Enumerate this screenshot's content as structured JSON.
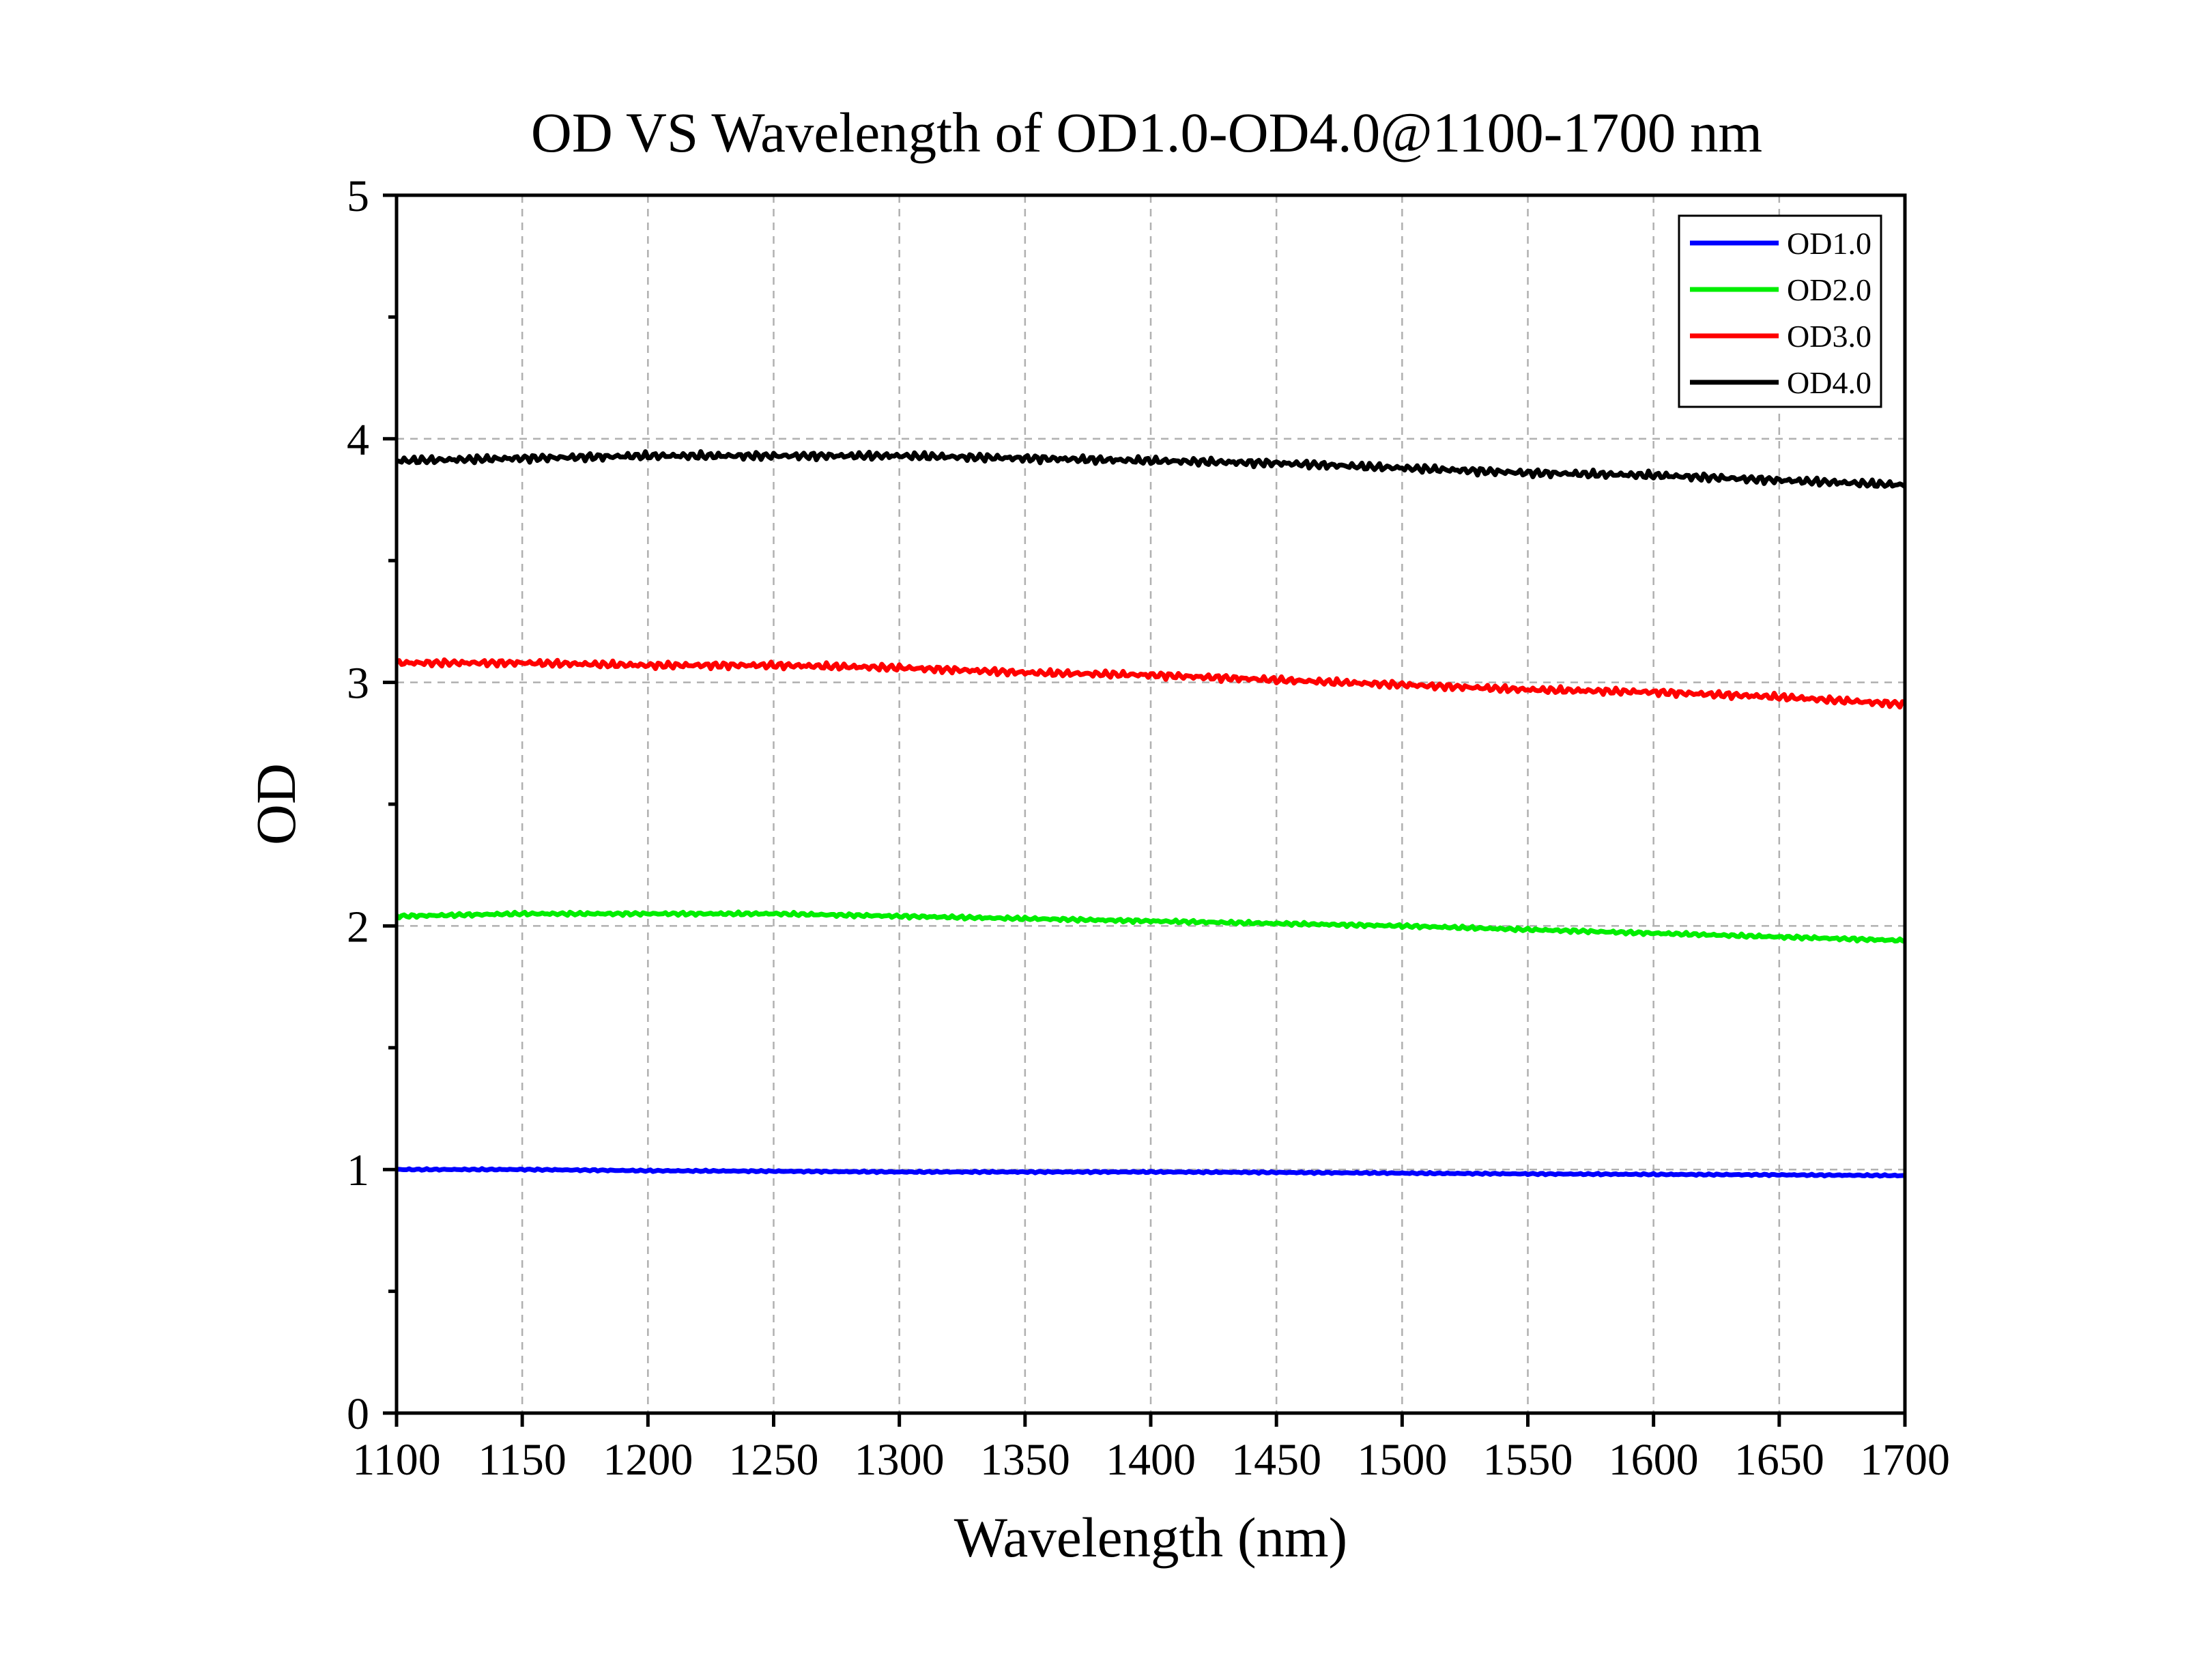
{
  "chart_data": {
    "type": "line",
    "title": "OD VS Wavelength of OD1.0-OD4.0@1100-1700 nm",
    "xlabel": "Wavelength (nm)",
    "ylabel": "OD",
    "xlim": [
      1100,
      1700
    ],
    "ylim": [
      0,
      5
    ],
    "x_ticks": [
      "1100",
      "1150",
      "1200",
      "1250",
      "1300",
      "1350",
      "1400",
      "1450",
      "1500",
      "1550",
      "1600",
      "1650",
      "1700"
    ],
    "y_ticks": [
      "0",
      "1",
      "2",
      "3",
      "4",
      "5"
    ],
    "grid": "dashed",
    "legend_position": "top-right",
    "x": [
      1100,
      1150,
      1200,
      1250,
      1300,
      1350,
      1400,
      1450,
      1500,
      1550,
      1600,
      1650,
      1700
    ],
    "series": [
      {
        "name": "OD1.0",
        "color": "#0000ff",
        "values": [
          1.0,
          1.0,
          0.995,
          0.993,
          0.99,
          0.99,
          0.99,
          0.988,
          0.985,
          0.982,
          0.98,
          0.978,
          0.975
        ]
      },
      {
        "name": "OD2.0",
        "color": "#00ee00",
        "values": [
          2.04,
          2.05,
          2.05,
          2.05,
          2.04,
          2.03,
          2.02,
          2.01,
          2.0,
          1.985,
          1.97,
          1.955,
          1.94
        ]
      },
      {
        "name": "OD3.0",
        "color": "#ff0000",
        "values": [
          3.08,
          3.08,
          3.07,
          3.07,
          3.06,
          3.04,
          3.03,
          3.01,
          2.99,
          2.97,
          2.96,
          2.94,
          2.91
        ]
      },
      {
        "name": "OD4.0",
        "color": "#000000",
        "values": [
          3.91,
          3.92,
          3.93,
          3.93,
          3.93,
          3.92,
          3.91,
          3.9,
          3.88,
          3.86,
          3.85,
          3.83,
          3.81
        ]
      }
    ]
  }
}
